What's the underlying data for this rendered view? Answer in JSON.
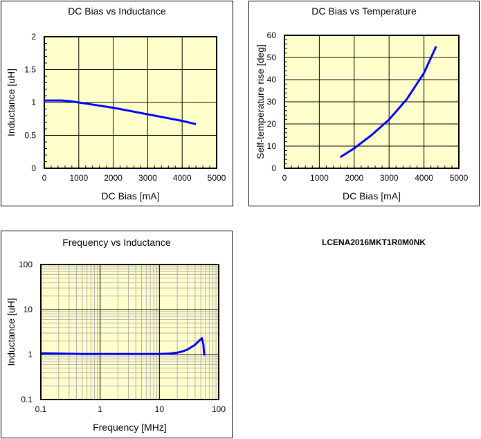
{
  "part_number": "LCENA2016MKT1R0M0NK",
  "colors": {
    "plot_bg": "#ffffcc",
    "curve": "#0000ff",
    "major_grid": "#000000",
    "minor_grid": "#b0b0b0"
  },
  "chart_data": [
    {
      "type": "line",
      "title": "DC Bias vs Inductance",
      "xlabel": "DC Bias [mA]",
      "ylabel": "Inductance [uH]",
      "xlim": [
        0,
        5000
      ],
      "ylim": [
        0,
        2
      ],
      "xticks": [
        "0",
        "1000",
        "2000",
        "3000",
        "4000",
        "5000"
      ],
      "yticks": [
        "0",
        "0.5",
        "1",
        "1.5",
        "2"
      ],
      "grid": true,
      "x": [
        0,
        250,
        500,
        750,
        1000,
        1500,
        2000,
        2500,
        3000,
        3500,
        4000,
        4400
      ],
      "y": [
        1.03,
        1.03,
        1.03,
        1.02,
        1.0,
        0.96,
        0.92,
        0.87,
        0.82,
        0.77,
        0.72,
        0.67
      ]
    },
    {
      "type": "line",
      "title": "DC Bias vs Temperature",
      "xlabel": "DC Bias [mA]",
      "ylabel": "Self-temperature rise [deg]",
      "xlim": [
        0,
        5000
      ],
      "ylim": [
        0,
        60
      ],
      "xticks": [
        "0",
        "1000",
        "2000",
        "3000",
        "4000",
        "5000"
      ],
      "yticks": [
        "0",
        "10",
        "20",
        "30",
        "40",
        "50",
        "60"
      ],
      "grid": true,
      "x": [
        1600,
        2000,
        2500,
        3000,
        3500,
        4000,
        4350
      ],
      "y": [
        5,
        9,
        15,
        22,
        31,
        43,
        55
      ]
    },
    {
      "type": "line",
      "title": "Frequency vs Inductance",
      "xlabel": "Frequency [MHz]",
      "ylabel": "Inductance [uH]",
      "xscale": "log",
      "yscale": "log",
      "xlim": [
        0.1,
        100
      ],
      "ylim": [
        0.1,
        100
      ],
      "xticks": [
        "0.1",
        "1",
        "10",
        "100"
      ],
      "yticks": [
        "0.1",
        "1",
        "10",
        "100"
      ],
      "grid": true,
      "x": [
        0.1,
        0.2,
        0.5,
        1,
        5,
        10,
        15,
        20,
        25,
        30,
        40,
        48,
        52,
        55,
        57
      ],
      "y": [
        1.07,
        1.05,
        1.03,
        1.03,
        1.03,
        1.03,
        1.05,
        1.1,
        1.18,
        1.3,
        1.65,
        2.1,
        2.3,
        1.7,
        0.95
      ]
    }
  ]
}
